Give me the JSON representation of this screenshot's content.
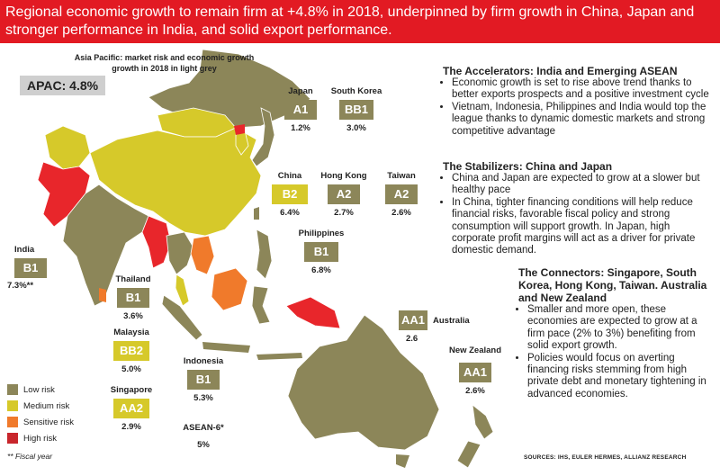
{
  "banner": "Regional economic growth to remain firm at +4.8% in 2018, underpinned by firm growth in China, Japan and stronger performance in India, and solid export performance.",
  "subtitle_line1": "Asia Pacific: market risk and economic growth",
  "subtitle_line2": "growth in 2018 in light grey",
  "apac": "APAC: 4.8%",
  "countries": {
    "japan": {
      "name": "Japan",
      "rating": "A1",
      "growth": "1.2%"
    },
    "south_korea": {
      "name": "South Korea",
      "rating": "BB1",
      "growth": "3.0%"
    },
    "china": {
      "name": "China",
      "rating": "B2",
      "growth": "6.4%"
    },
    "hong_kong": {
      "name": "Hong Kong",
      "rating": "A2",
      "growth": "2.7%"
    },
    "taiwan": {
      "name": "Taiwan",
      "rating": "A2",
      "growth": "2.6%"
    },
    "philippines": {
      "name": "Philippines",
      "rating": "B1",
      "growth": "6.8%"
    },
    "india": {
      "name": "India",
      "rating": "B1",
      "growth": "7.3%**"
    },
    "thailand": {
      "name": "Thailand",
      "rating": "B1",
      "growth": "3.6%"
    },
    "malaysia": {
      "name": "Malaysia",
      "rating": "BB2",
      "growth": "5.0%"
    },
    "indonesia": {
      "name": "Indonesia",
      "rating": "B1",
      "growth": "5.3%"
    },
    "singapore": {
      "name": "Singapore",
      "rating": "AA2",
      "growth": "2.9%"
    },
    "australia": {
      "name": "Australia",
      "rating": "AA1",
      "growth": "2.6"
    },
    "new_zealand": {
      "name": "New Zealand",
      "rating": "AA1",
      "growth": "2.6%"
    },
    "asean6": {
      "name": "ASEAN-6*",
      "growth": "5%"
    }
  },
  "legend": [
    {
      "label": "Low risk",
      "color": "#8c8659"
    },
    {
      "label": "Medium risk",
      "color": "#d6c92a"
    },
    {
      "label": "Sensitive risk",
      "color": "#f07a2b"
    },
    {
      "label": "High risk",
      "color": "#c8262c"
    }
  ],
  "fiscal_note": "** Fiscal year",
  "sources": "SOURCES: IHS, EULER HERMES, ALLIANZ RESEARCH",
  "sections": [
    {
      "title": "The Accelerators: India and Emerging ASEAN",
      "bullets": [
        "Economic growth is set to rise above trend thanks to better exports prospects and a positive investment cycle",
        "Vietnam, Indonesia, Philippines and India would top the league thanks to dynamic domestic markets and strong competitive advantage"
      ]
    },
    {
      "title": "The Stabilizers: China and Japan",
      "bullets": [
        "China and Japan are expected to grow at a slower but healthy pace",
        "In China, tighter financing conditions will help reduce financial risks, favorable fiscal policy and strong consumption will support growth. In Japan, high corporate profit margins will act as a driver for private domestic demand."
      ]
    },
    {
      "title": "The Connectors: Singapore, South Korea, Hong Kong, Taiwan. Australia and New Zealand",
      "bullets": [
        "Smaller and more open, these economies are expected to grow at a firm pace (2% to 3%) benefiting from solid export growth.",
        "Policies would focus on averting financing risks stemming from high private debt and monetary tightening in advanced economies."
      ]
    }
  ],
  "colors": {
    "banner": "#e21a23",
    "low": "#8c8659",
    "medium": "#d6c92a",
    "sensitive": "#f07a2b",
    "high": "#e8262b"
  }
}
